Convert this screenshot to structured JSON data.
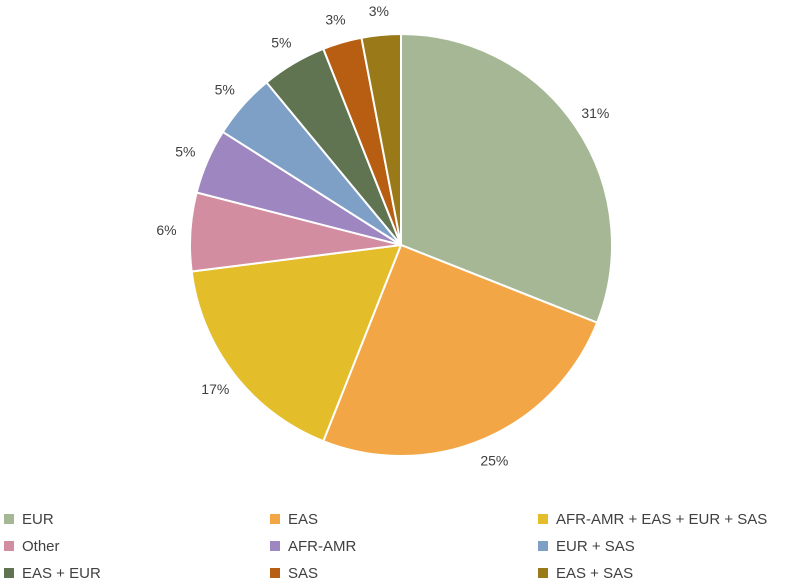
{
  "chart_data": {
    "type": "pie",
    "title": "",
    "slices": [
      {
        "label": "EUR",
        "value": 31,
        "display": "31%",
        "color": "#a6b795"
      },
      {
        "label": "EAS",
        "value": 25,
        "display": "25%",
        "color": "#f2a645"
      },
      {
        "label": "AFR-AMR + EAS + EUR + SAS",
        "value": 17,
        "display": "17%",
        "color": "#e3bd2a"
      },
      {
        "label": "Other",
        "value": 6,
        "display": "6%",
        "color": "#d28ea0"
      },
      {
        "label": "AFR-AMR",
        "value": 5,
        "display": "5%",
        "color": "#9e86c1"
      },
      {
        "label": "EUR + SAS",
        "value": 5,
        "display": "5%",
        "color": "#7ea0c6"
      },
      {
        "label": "EAS + EUR",
        "value": 5,
        "display": "5%",
        "color": "#617452"
      },
      {
        "label": "SAS",
        "value": 3,
        "display": "3%",
        "color": "#b75e12"
      },
      {
        "label": "EAS + SAS",
        "value": 3,
        "display": "3%",
        "color": "#9a7a18"
      }
    ],
    "legend_position": "bottom"
  }
}
